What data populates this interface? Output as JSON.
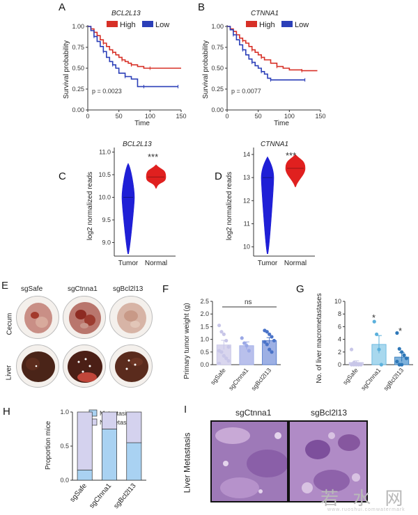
{
  "panels": {
    "A": {
      "label": "A",
      "gene": "BCL2L13",
      "ylabel": "Survival probability",
      "xlabel": "Time",
      "pvalue": "p = 0.0023",
      "legend": [
        {
          "name": "High",
          "color": "#d73027"
        },
        {
          "name": "Low",
          "color": "#2b3fb8"
        }
      ]
    },
    "B": {
      "label": "B",
      "gene": "CTNNA1",
      "ylabel": "Survival probability",
      "xlabel": "Time",
      "pvalue": "p = 0.0077",
      "legend": [
        {
          "name": "High",
          "color": "#d73027"
        },
        {
          "name": "Low",
          "color": "#2b3fb8"
        }
      ]
    },
    "C": {
      "label": "C",
      "gene": "BCL2L13",
      "ylabel": "log2 normalized reads",
      "stars": "***"
    },
    "D": {
      "label": "D",
      "gene": "CTNNA1",
      "ylabel": "log2 normalized reads",
      "stars": "***"
    },
    "E": {
      "label": "E",
      "columns": [
        "sgSafe",
        "sgCtnna1",
        "sgBcl2l13"
      ],
      "rows": [
        "Cecum",
        "Liver"
      ]
    },
    "F": {
      "label": "F",
      "ylabel": "Primary tumor weight  (g)",
      "sig": "ns"
    },
    "G": {
      "label": "G",
      "ylabel": "No. of liver macrometastases",
      "stars": [
        "*",
        "*"
      ]
    },
    "H": {
      "label": "H",
      "ylabel": "Proportion mice",
      "legend": [
        "Metastasis",
        "No Metastasis"
      ]
    },
    "I": {
      "label": "I",
      "row_label": "Liver Metastasis",
      "columns": [
        "sgCtnna1",
        "sgBcl2l13"
      ]
    }
  },
  "chart_data": [
    {
      "id": "A",
      "type": "line",
      "title": "BCL2L13",
      "xlabel": "Time",
      "ylabel": "Survival probability",
      "xlim": [
        0,
        150
      ],
      "ylim": [
        0,
        1
      ],
      "xticks": [
        "0",
        "50",
        "100",
        "150"
      ],
      "yticks": [
        "0.00",
        "0.25",
        "0.50",
        "0.75",
        "1.00"
      ],
      "series": [
        {
          "name": "High",
          "color": "#d73027",
          "x": [
            0,
            5,
            10,
            15,
            20,
            25,
            30,
            35,
            40,
            45,
            50,
            55,
            60,
            65,
            70,
            80,
            90,
            100,
            120,
            150
          ],
          "y": [
            1.0,
            0.97,
            0.93,
            0.89,
            0.84,
            0.8,
            0.76,
            0.72,
            0.69,
            0.66,
            0.63,
            0.6,
            0.58,
            0.56,
            0.54,
            0.52,
            0.5,
            0.5,
            0.5,
            0.5
          ]
        },
        {
          "name": "Low",
          "color": "#2b3fb8",
          "x": [
            0,
            5,
            10,
            15,
            20,
            25,
            30,
            35,
            40,
            45,
            50,
            60,
            70,
            80,
            90,
            100,
            120,
            145
          ],
          "y": [
            1.0,
            0.95,
            0.88,
            0.82,
            0.76,
            0.7,
            0.63,
            0.58,
            0.54,
            0.5,
            0.44,
            0.4,
            0.37,
            0.28,
            0.28,
            0.28,
            0.28,
            0.28
          ]
        }
      ]
    },
    {
      "id": "B",
      "type": "line",
      "title": "CTNNA1",
      "xlabel": "Time",
      "ylabel": "Survival probability",
      "xlim": [
        0,
        150
      ],
      "ylim": [
        0,
        1
      ],
      "xticks": [
        "0",
        "50",
        "100",
        "150"
      ],
      "yticks": [
        "0.00",
        "0.25",
        "0.50",
        "0.75",
        "1.00"
      ],
      "series": [
        {
          "name": "High",
          "color": "#d73027",
          "x": [
            0,
            5,
            10,
            15,
            20,
            25,
            30,
            35,
            40,
            45,
            50,
            55,
            60,
            70,
            80,
            90,
            100,
            120,
            145
          ],
          "y": [
            1.0,
            0.97,
            0.94,
            0.9,
            0.86,
            0.83,
            0.8,
            0.76,
            0.72,
            0.69,
            0.66,
            0.63,
            0.6,
            0.56,
            0.52,
            0.5,
            0.48,
            0.47,
            0.47
          ]
        },
        {
          "name": "Low",
          "color": "#2b3fb8",
          "x": [
            0,
            5,
            10,
            15,
            20,
            25,
            30,
            35,
            40,
            45,
            50,
            55,
            60,
            65,
            70,
            80,
            100,
            125
          ],
          "y": [
            1.0,
            0.96,
            0.9,
            0.84,
            0.78,
            0.72,
            0.66,
            0.61,
            0.57,
            0.53,
            0.5,
            0.46,
            0.43,
            0.38,
            0.36,
            0.36,
            0.36,
            0.36
          ]
        }
      ]
    },
    {
      "id": "C",
      "type": "violin",
      "title": "BCL2L13",
      "ylabel": "log2 normalized reads",
      "categories": [
        "Tumor",
        "Normal"
      ],
      "ylim": [
        8.7,
        11.1
      ],
      "yticks": [
        "9.0",
        "9.5",
        "10.0",
        "10.5",
        "11.0"
      ],
      "groups": [
        {
          "name": "Tumor",
          "color": "#1f1fd6",
          "min": 8.75,
          "max": 10.75,
          "median": 10.0
        },
        {
          "name": "Normal",
          "color": "#e0201f",
          "min": 10.2,
          "max": 10.72,
          "median": 10.45
        }
      ]
    },
    {
      "id": "D",
      "type": "violin",
      "title": "CTNNA1",
      "ylabel": "log2 normalized reads",
      "categories": [
        "Tumor",
        "Normal"
      ],
      "ylim": [
        9.6,
        14.3
      ],
      "yticks": [
        "10",
        "11",
        "12",
        "13",
        "14"
      ],
      "groups": [
        {
          "name": "Tumor",
          "color": "#1f1fd6",
          "min": 9.7,
          "max": 13.9,
          "median": 13.0
        },
        {
          "name": "Normal",
          "color": "#e0201f",
          "min": 12.6,
          "max": 14.0,
          "median": 13.4
        }
      ]
    },
    {
      "id": "F",
      "type": "bar",
      "ylabel": "Primary tumor weight  (g)",
      "categories": [
        "sgSafe",
        "sgCtnna1",
        "sgBcl2l13"
      ],
      "ylim": [
        0,
        2.5
      ],
      "yticks": [
        "0.0",
        "0.5",
        "1.0",
        "1.5",
        "2.0",
        "2.5"
      ],
      "values": [
        0.78,
        0.75,
        0.95
      ],
      "errors": [
        0.18,
        0.15,
        0.12
      ],
      "colors": [
        "#d9d6ee",
        "#b9c0ec",
        "#9db0e4"
      ],
      "point_colors": [
        "#c8c6e8",
        "#9aa8e6",
        "#4a73c8"
      ],
      "points": [
        [
          1.55,
          1.3,
          1.2,
          0.95,
          0.7,
          0.55,
          0.5,
          0.35,
          0.25,
          0.15,
          0.05
        ],
        [
          1.05,
          0.85,
          0.75,
          0.55
        ],
        [
          1.35,
          1.3,
          1.2,
          1.1,
          0.95,
          0.9,
          0.8,
          0.6,
          0.5
        ]
      ]
    },
    {
      "id": "G",
      "type": "bar",
      "ylabel": "No. of liver macrometastases",
      "categories": [
        "sgSafe",
        "sgCtnna1",
        "sgBcl2l13"
      ],
      "ylim": [
        0,
        10
      ],
      "yticks": [
        "0",
        "2",
        "4",
        "6",
        "8",
        "10"
      ],
      "values": [
        0.35,
        3.2,
        1.2
      ],
      "errors": [
        0.25,
        1.4,
        0.7
      ],
      "colors": [
        "#d9d6ee",
        "#a8d8ee",
        "#7fb2dc"
      ],
      "point_colors": [
        "#c8c6e8",
        "#5bb0dc",
        "#2f78b8"
      ],
      "points": [
        [
          2.4,
          0.3,
          0.2,
          0.1,
          0,
          0,
          0,
          0,
          0
        ],
        [
          6.8,
          4.8,
          2.4,
          0
        ],
        [
          5.0,
          2.5,
          2.0,
          1.5,
          1.0,
          0.5,
          0,
          0
        ]
      ]
    },
    {
      "id": "H",
      "type": "bar",
      "ylabel": "Proportion mice",
      "categories": [
        "sgSafe",
        "sgCtnna1",
        "sgBcl2l13"
      ],
      "ylim": [
        0,
        1
      ],
      "yticks": [
        "0.0",
        "0.5",
        "1.0"
      ],
      "series": [
        {
          "name": "Metastasis",
          "color": "#a9d2f2",
          "values": [
            0.15,
            0.75,
            0.55
          ]
        },
        {
          "name": "No Metastasis",
          "color": "#d4d2ee",
          "values": [
            0.85,
            0.25,
            0.45
          ]
        }
      ]
    }
  ],
  "watermark": {
    "text": "若 水 网",
    "sub": [
      "www.ruoshui.com",
      "watermark"
    ]
  }
}
